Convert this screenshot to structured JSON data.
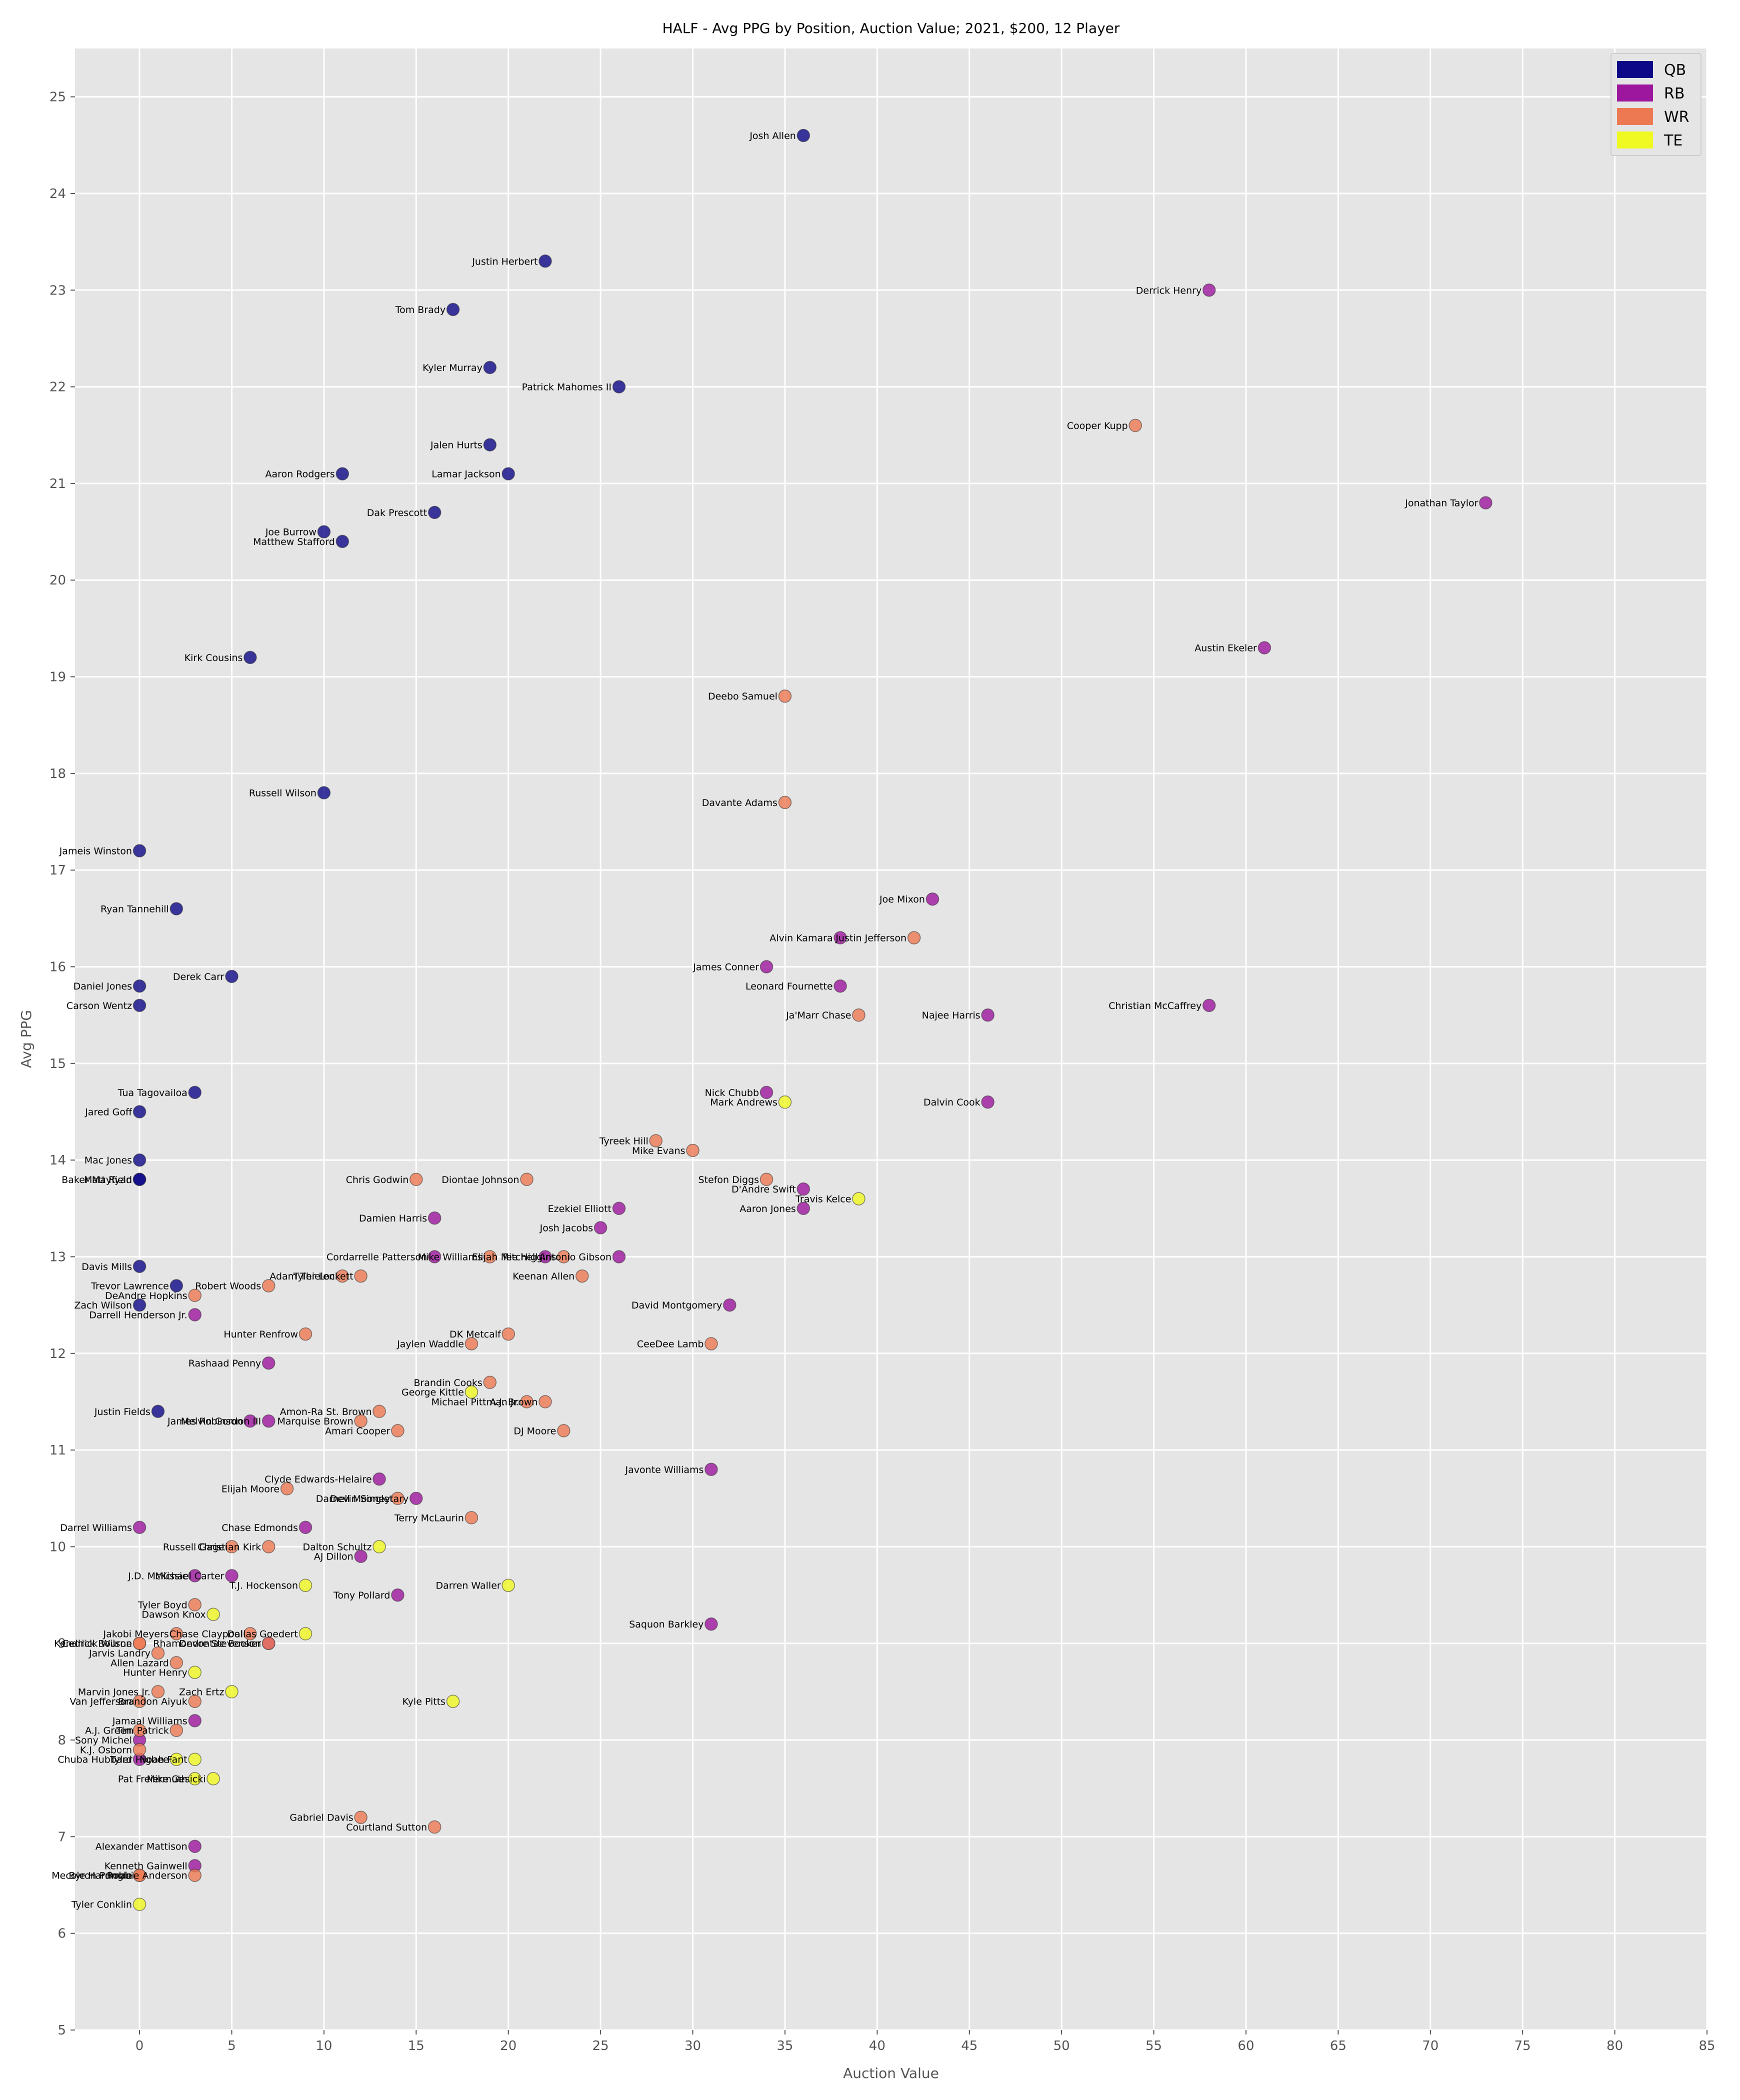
{
  "chart_data": {
    "type": "scatter",
    "title": "HALF - Avg PPG by Position, Auction Value; 2021, $200, 12 Player",
    "xlabel": "Auction Value",
    "ylabel": "Avg PPG",
    "xlim": [
      -3.5,
      85
    ],
    "ylim": [
      5,
      25.5
    ],
    "xticks": [
      0,
      5,
      10,
      15,
      20,
      25,
      30,
      35,
      40,
      45,
      50,
      55,
      60,
      65,
      70,
      75,
      80,
      85
    ],
    "yticks": [
      5,
      6,
      7,
      8,
      9,
      10,
      11,
      12,
      13,
      14,
      15,
      16,
      17,
      18,
      19,
      20,
      21,
      22,
      23,
      24,
      25
    ],
    "grid": true,
    "legend_position": "top-right",
    "colors": {
      "QB": "#0d0887",
      "RB": "#9c179e",
      "WR": "#ed7953",
      "TE": "#f0f921"
    },
    "series": [
      {
        "name": "QB",
        "points": [
          {
            "label": "Josh Allen",
            "x": 36,
            "y": 24.6
          },
          {
            "label": "Justin Herbert",
            "x": 22,
            "y": 23.3
          },
          {
            "label": "Tom Brady",
            "x": 17,
            "y": 22.8
          },
          {
            "label": "Kyler Murray",
            "x": 19,
            "y": 22.2
          },
          {
            "label": "Patrick Mahomes II",
            "x": 26,
            "y": 22.0
          },
          {
            "label": "Jalen Hurts",
            "x": 19,
            "y": 21.4
          },
          {
            "label": "Aaron Rodgers",
            "x": 11,
            "y": 21.1
          },
          {
            "label": "Lamar Jackson",
            "x": 20,
            "y": 21.1
          },
          {
            "label": "Dak Prescott",
            "x": 16,
            "y": 20.7
          },
          {
            "label": "Joe Burrow",
            "x": 10,
            "y": 20.5
          },
          {
            "label": "Matthew Stafford",
            "x": 11,
            "y": 20.4
          },
          {
            "label": "Kirk Cousins",
            "x": 6,
            "y": 19.2
          },
          {
            "label": "Russell Wilson",
            "x": 10,
            "y": 17.8
          },
          {
            "label": "Jameis Winston",
            "x": 0,
            "y": 17.2
          },
          {
            "label": "Ryan Tannehill",
            "x": 2,
            "y": 16.6
          },
          {
            "label": "Derek Carr",
            "x": 5,
            "y": 15.9
          },
          {
            "label": "Daniel Jones",
            "x": 0,
            "y": 15.8
          },
          {
            "label": "Carson Wentz",
            "x": 0,
            "y": 15.6
          },
          {
            "label": "Tua Tagovailoa",
            "x": 3,
            "y": 14.7
          },
          {
            "label": "Jared Goff",
            "x": 0,
            "y": 14.5
          },
          {
            "label": "Mac Jones",
            "x": 0,
            "y": 14.0
          },
          {
            "label": "Baker Mayfield",
            "x": 0,
            "y": 13.8
          },
          {
            "label": "Matt Ryan",
            "x": 0,
            "y": 13.8
          },
          {
            "label": "Davis Mills",
            "x": 0,
            "y": 12.9
          },
          {
            "label": "Trevor Lawrence",
            "x": 2,
            "y": 12.7
          },
          {
            "label": "Zach Wilson",
            "x": 0,
            "y": 12.5
          },
          {
            "label": "Justin Fields",
            "x": 1,
            "y": 11.4
          }
        ]
      },
      {
        "name": "RB",
        "points": [
          {
            "label": "Derrick Henry",
            "x": 58,
            "y": 23.0
          },
          {
            "label": "Jonathan Taylor",
            "x": 73,
            "y": 20.8
          },
          {
            "label": "Austin Ekeler",
            "x": 61,
            "y": 19.3
          },
          {
            "label": "Joe Mixon",
            "x": 43,
            "y": 16.7
          },
          {
            "label": "Alvin Kamara",
            "x": 38,
            "y": 16.3
          },
          {
            "label": "James Conner",
            "x": 34,
            "y": 16.0
          },
          {
            "label": "Leonard Fournette",
            "x": 38,
            "y": 15.8
          },
          {
            "label": "Christian McCaffrey",
            "x": 58,
            "y": 15.6
          },
          {
            "label": "Najee Harris",
            "x": 46,
            "y": 15.5
          },
          {
            "label": "Nick Chubb",
            "x": 34,
            "y": 14.7
          },
          {
            "label": "Dalvin Cook",
            "x": 46,
            "y": 14.6
          },
          {
            "label": "D'Andre Swift",
            "x": 36,
            "y": 13.7
          },
          {
            "label": "Aaron Jones",
            "x": 36,
            "y": 13.5
          },
          {
            "label": "Ezekiel Elliott",
            "x": 26,
            "y": 13.5
          },
          {
            "label": "Damien Harris",
            "x": 16,
            "y": 13.4
          },
          {
            "label": "Josh Jacobs",
            "x": 25,
            "y": 13.3
          },
          {
            "label": "Cordarrelle Patterson",
            "x": 16,
            "y": 13.0
          },
          {
            "label": "Antonio Gibson",
            "x": 26,
            "y": 13.0
          },
          {
            "label": "Elijah Mitchell",
            "x": 22,
            "y": 13.0
          },
          {
            "label": "David Montgomery",
            "x": 32,
            "y": 12.5
          },
          {
            "label": "Darrell Henderson Jr.",
            "x": 3,
            "y": 12.4
          },
          {
            "label": "Rashaad Penny",
            "x": 7,
            "y": 11.9
          },
          {
            "label": "James Robinson",
            "x": 6,
            "y": 11.3
          },
          {
            "label": "Melvin Gordon III",
            "x": 7,
            "y": 11.3
          },
          {
            "label": "Javonte Williams",
            "x": 31,
            "y": 10.8
          },
          {
            "label": "Clyde Edwards-Helaire",
            "x": 13,
            "y": 10.7
          },
          {
            "label": "Devin Singletary",
            "x": 15,
            "y": 10.5
          },
          {
            "label": "Darrel Williams",
            "x": 0,
            "y": 10.2
          },
          {
            "label": "Chase Edmonds",
            "x": 9,
            "y": 10.2
          },
          {
            "label": "AJ Dillon",
            "x": 12,
            "y": 9.9
          },
          {
            "label": "J.D. McKissic",
            "x": 3,
            "y": 9.7
          },
          {
            "label": "Michael Carter",
            "x": 5,
            "y": 9.7
          },
          {
            "label": "Tony Pollard",
            "x": 14,
            "y": 9.5
          },
          {
            "label": "Saquon Barkley",
            "x": 31,
            "y": 9.2
          },
          {
            "label": "Devontae Booker",
            "x": 7,
            "y": 9.0
          },
          {
            "label": "Jamaal Williams",
            "x": 3,
            "y": 8.2
          },
          {
            "label": "Sony Michel",
            "x": 0,
            "y": 8.0
          },
          {
            "label": "Chuba Hubbard",
            "x": 0,
            "y": 7.8
          },
          {
            "label": "Alexander Mattison",
            "x": 3,
            "y": 6.9
          },
          {
            "label": "Kenneth Gainwell",
            "x": 3,
            "y": 6.7
          }
        ]
      },
      {
        "name": "WR",
        "points": [
          {
            "label": "Cooper Kupp",
            "x": 54,
            "y": 21.6
          },
          {
            "label": "Deebo Samuel",
            "x": 35,
            "y": 18.8
          },
          {
            "label": "Davante Adams",
            "x": 35,
            "y": 17.7
          },
          {
            "label": "Justin Jefferson",
            "x": 42,
            "y": 16.3
          },
          {
            "label": "Ja'Marr Chase",
            "x": 39,
            "y": 15.5
          },
          {
            "label": "Tyreek Hill",
            "x": 28,
            "y": 14.2
          },
          {
            "label": "Mike Evans",
            "x": 30,
            "y": 14.1
          },
          {
            "label": "Chris Godwin",
            "x": 15,
            "y": 13.8
          },
          {
            "label": "Diontae Johnson",
            "x": 21,
            "y": 13.8
          },
          {
            "label": "Stefon Diggs",
            "x": 34,
            "y": 13.8
          },
          {
            "label": "Mike Williams",
            "x": 19,
            "y": 13.0
          },
          {
            "label": "Tee Higgins",
            "x": 23,
            "y": 13.0
          },
          {
            "label": "Adam Thielen",
            "x": 11,
            "y": 12.8
          },
          {
            "label": "Tyler Lockett",
            "x": 12,
            "y": 12.8
          },
          {
            "label": "Keenan Allen",
            "x": 24,
            "y": 12.8
          },
          {
            "label": "Robert Woods",
            "x": 7,
            "y": 12.7
          },
          {
            "label": "DeAndre Hopkins",
            "x": 3,
            "y": 12.6
          },
          {
            "label": "Hunter Renfrow",
            "x": 9,
            "y": 12.2
          },
          {
            "label": "DK Metcalf",
            "x": 20,
            "y": 12.2
          },
          {
            "label": "Jaylen Waddle",
            "x": 18,
            "y": 12.1
          },
          {
            "label": "CeeDee Lamb",
            "x": 31,
            "y": 12.1
          },
          {
            "label": "Brandin Cooks",
            "x": 19,
            "y": 11.7
          },
          {
            "label": "Michael Pittman Jr.",
            "x": 21,
            "y": 11.5
          },
          {
            "label": "A.J. Brown",
            "x": 22,
            "y": 11.5
          },
          {
            "label": "Amon-Ra St. Brown",
            "x": 13,
            "y": 11.4
          },
          {
            "label": "Marquise Brown",
            "x": 12,
            "y": 11.3
          },
          {
            "label": "Amari Cooper",
            "x": 14,
            "y": 11.2
          },
          {
            "label": "DJ Moore",
            "x": 23,
            "y": 11.2
          },
          {
            "label": "Elijah Moore",
            "x": 8,
            "y": 10.6
          },
          {
            "label": "Darnell Mooney",
            "x": 14,
            "y": 10.5
          },
          {
            "label": "Terry McLaurin",
            "x": 18,
            "y": 10.3
          },
          {
            "label": "Russell Gage",
            "x": 5,
            "y": 10.0
          },
          {
            "label": "Christian Kirk",
            "x": 7,
            "y": 10.0
          },
          {
            "label": "Tyler Boyd",
            "x": 3,
            "y": 9.4
          },
          {
            "label": "Jakobi Meyers",
            "x": 2,
            "y": 9.1
          },
          {
            "label": "Chase Claypool",
            "x": 6,
            "y": 9.1
          },
          {
            "label": "Kendrick Bourne",
            "x": 0,
            "y": 9.0
          },
          {
            "label": "Cedrick Wilson",
            "x": 0,
            "y": 9.0
          },
          {
            "label": "Rhamondre Stevenson",
            "x": 7,
            "y": 9.0
          },
          {
            "label": "Jarvis Landry",
            "x": 1,
            "y": 8.9
          },
          {
            "label": "Allen Lazard",
            "x": 2,
            "y": 8.8
          },
          {
            "label": "Marvin Jones Jr.",
            "x": 1,
            "y": 8.5
          },
          {
            "label": "Van Jefferson",
            "x": 0,
            "y": 8.4
          },
          {
            "label": "Brandon Aiyuk",
            "x": 3,
            "y": 8.4
          },
          {
            "label": "A.J. Green",
            "x": 0,
            "y": 8.1
          },
          {
            "label": "Tim Patrick",
            "x": 2,
            "y": 8.1
          },
          {
            "label": "K.J. Osborn",
            "x": 0,
            "y": 7.9
          },
          {
            "label": "Gabriel Davis",
            "x": 12,
            "y": 7.2
          },
          {
            "label": "Courtland Sutton",
            "x": 16,
            "y": 7.1
          },
          {
            "label": "Mecole Hardman",
            "x": 0,
            "y": 6.6
          },
          {
            "label": "Byron Pringle",
            "x": 0,
            "y": 6.6
          },
          {
            "label": "Robbie Anderson",
            "x": 3,
            "y": 6.6
          }
        ]
      },
      {
        "name": "TE",
        "points": [
          {
            "label": "Mark Andrews",
            "x": 35,
            "y": 14.6
          },
          {
            "label": "Travis Kelce",
            "x": 39,
            "y": 13.6
          },
          {
            "label": "George Kittle",
            "x": 18,
            "y": 11.6
          },
          {
            "label": "Dalton Schultz",
            "x": 13,
            "y": 10.0
          },
          {
            "label": "T.J. Hockenson",
            "x": 9,
            "y": 9.6
          },
          {
            "label": "Darren Waller",
            "x": 20,
            "y": 9.6
          },
          {
            "label": "Dawson Knox",
            "x": 4,
            "y": 9.3
          },
          {
            "label": "Dallas Goedert",
            "x": 9,
            "y": 9.1
          },
          {
            "label": "Hunter Henry",
            "x": 3,
            "y": 8.7
          },
          {
            "label": "Zach Ertz",
            "x": 5,
            "y": 8.5
          },
          {
            "label": "Kyle Pitts",
            "x": 17,
            "y": 8.4
          },
          {
            "label": "Tyler Higbee",
            "x": 2,
            "y": 7.8
          },
          {
            "label": "Noah Fant",
            "x": 3,
            "y": 7.8
          },
          {
            "label": "Pat Freiermuth",
            "x": 3,
            "y": 7.6
          },
          {
            "label": "Mike Gesicki",
            "x": 4,
            "y": 7.6
          },
          {
            "label": "Tyler Conklin",
            "x": 0,
            "y": 6.3
          }
        ]
      }
    ]
  }
}
